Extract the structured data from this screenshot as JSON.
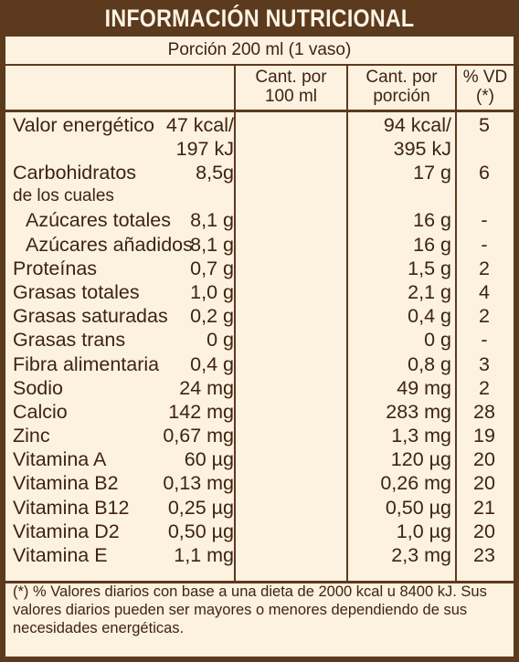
{
  "title": "INFORMACIÓN NUTRICIONAL",
  "portion": "Porción 200 ml (1 vaso)",
  "headers": {
    "per100": "Cant. por\n100 ml",
    "perPortion": "Cant. por\nporción",
    "vd": "% VD\n(*)"
  },
  "rows": [
    {
      "name": "Valor energético",
      "per100": "47 kcal/\n197 kJ",
      "perPortion": "94 kcal/\n395 kJ",
      "vd": "5"
    },
    {
      "name": "Carbohidratos",
      "per100": "8,5g",
      "perPortion": "17 g",
      "vd": "6"
    },
    {
      "name": "de los cuales",
      "per100": "",
      "perPortion": "",
      "vd": ""
    },
    {
      "name": "Azúcares totales",
      "per100": "8,1 g",
      "perPortion": "16 g",
      "vd": "-"
    },
    {
      "name": "Azúcares añadidos",
      "per100": "8,1 g",
      "perPortion": "16 g",
      "vd": "-"
    },
    {
      "name": "Proteínas",
      "per100": "0,7 g",
      "perPortion": "1,5 g",
      "vd": "2"
    },
    {
      "name": "Grasas totales",
      "per100": "1,0 g",
      "perPortion": "2,1 g",
      "vd": "4"
    },
    {
      "name": "Grasas saturadas",
      "per100": "0,2 g",
      "perPortion": "0,4 g",
      "vd": "2"
    },
    {
      "name": "Grasas trans",
      "per100": "0 g",
      "perPortion": "0 g",
      "vd": "-"
    },
    {
      "name": "Fibra alimentaria",
      "per100": "0,4 g",
      "perPortion": "0,8 g",
      "vd": "3"
    },
    {
      "name": "Sodio",
      "per100": "24 mg",
      "perPortion": "49 mg",
      "vd": "2"
    },
    {
      "name": "Calcio",
      "per100": "142 mg",
      "perPortion": "283 mg",
      "vd": "28"
    },
    {
      "name": "Zinc",
      "per100": "0,67 mg",
      "perPortion": "1,3 mg",
      "vd": "19"
    },
    {
      "name": "Vitamina A",
      "per100": "60 µg",
      "perPortion": "120 µg",
      "vd": "20"
    },
    {
      "name": "Vitamina B2",
      "per100": "0,13 mg",
      "perPortion": "0,26 mg",
      "vd": "20"
    },
    {
      "name": "Vitamina B12",
      "per100": "0,25 µg",
      "perPortion": "0,50 µg",
      "vd": "21"
    },
    {
      "name": "Vitamina D2",
      "per100": "0,50 µg",
      "perPortion": "1,0 µg",
      "vd": "20"
    },
    {
      "name": "Vitamina E",
      "per100": "1,1 mg",
      "perPortion": "2,3 mg",
      "vd": "23"
    }
  ],
  "footnote": "(*) % Valores diarios con base a una dieta de 2000 kcal u 8400 kJ. Sus valores diarios pueden ser mayores o menores dependiendo de sus necesidades energéticas.",
  "colors": {
    "border": "#5c3a1e",
    "background": "#fdf1e0",
    "text": "#3e2412",
    "titleText": "#fdf3e4"
  }
}
